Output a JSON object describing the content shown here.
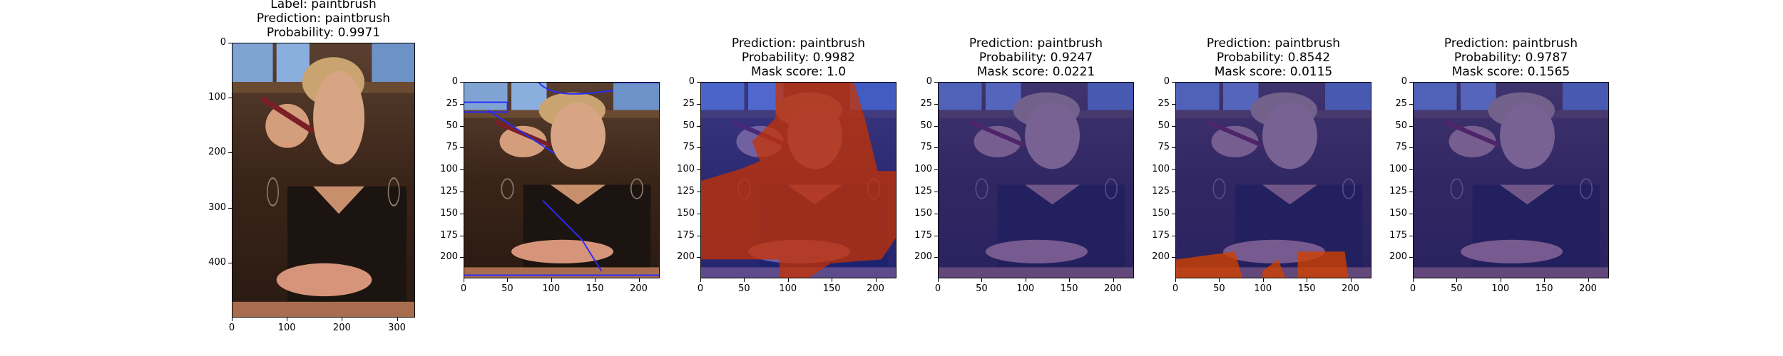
{
  "panels": [
    {
      "title_lines": [
        "Label: paintbrush",
        "Prediction: paintbrush",
        "Probability: 0.9971"
      ],
      "x_ticks": [
        "0",
        "100",
        "200",
        "300"
      ],
      "y_ticks": [
        "0",
        "100",
        "200",
        "300",
        "400"
      ],
      "overlay": "none"
    },
    {
      "title_lines": [],
      "x_ticks": [
        "0",
        "50",
        "100",
        "150",
        "200"
      ],
      "y_ticks": [
        "0",
        "25",
        "50",
        "75",
        "100",
        "125",
        "150",
        "175",
        "200"
      ],
      "overlay": "outline"
    },
    {
      "title_lines": [
        "Prediction: paintbrush",
        "Probability: 0.9982",
        "Mask score: 1.0"
      ],
      "x_ticks": [
        "0",
        "50",
        "100",
        "150",
        "200"
      ],
      "y_ticks": [
        "0",
        "25",
        "50",
        "75",
        "100",
        "125",
        "150",
        "175",
        "200"
      ],
      "overlay": "full"
    },
    {
      "title_lines": [
        "Prediction: paintbrush",
        "Probability: 0.9247",
        "Mask score: 0.0221"
      ],
      "x_ticks": [
        "0",
        "50",
        "100",
        "150",
        "200"
      ],
      "y_ticks": [
        "0",
        "25",
        "50",
        "75",
        "100",
        "125",
        "150",
        "175",
        "200"
      ],
      "overlay": "blue"
    },
    {
      "title_lines": [
        "Prediction: paintbrush",
        "Probability: 0.8542",
        "Mask score: 0.0115"
      ],
      "x_ticks": [
        "0",
        "50",
        "100",
        "150",
        "200"
      ],
      "y_ticks": [
        "0",
        "25",
        "50",
        "75",
        "100",
        "125",
        "150",
        "175",
        "200"
      ],
      "overlay": "bottom"
    },
    {
      "title_lines": [
        "Prediction: paintbrush",
        "Probability: 0.9787",
        "Mask score: 0.1565"
      ],
      "x_ticks": [
        "0",
        "50",
        "100",
        "150",
        "200"
      ],
      "y_ticks": [
        "0",
        "25",
        "50",
        "75",
        "100",
        "125",
        "150",
        "175",
        "200"
      ],
      "overlay": "blue"
    }
  ]
}
